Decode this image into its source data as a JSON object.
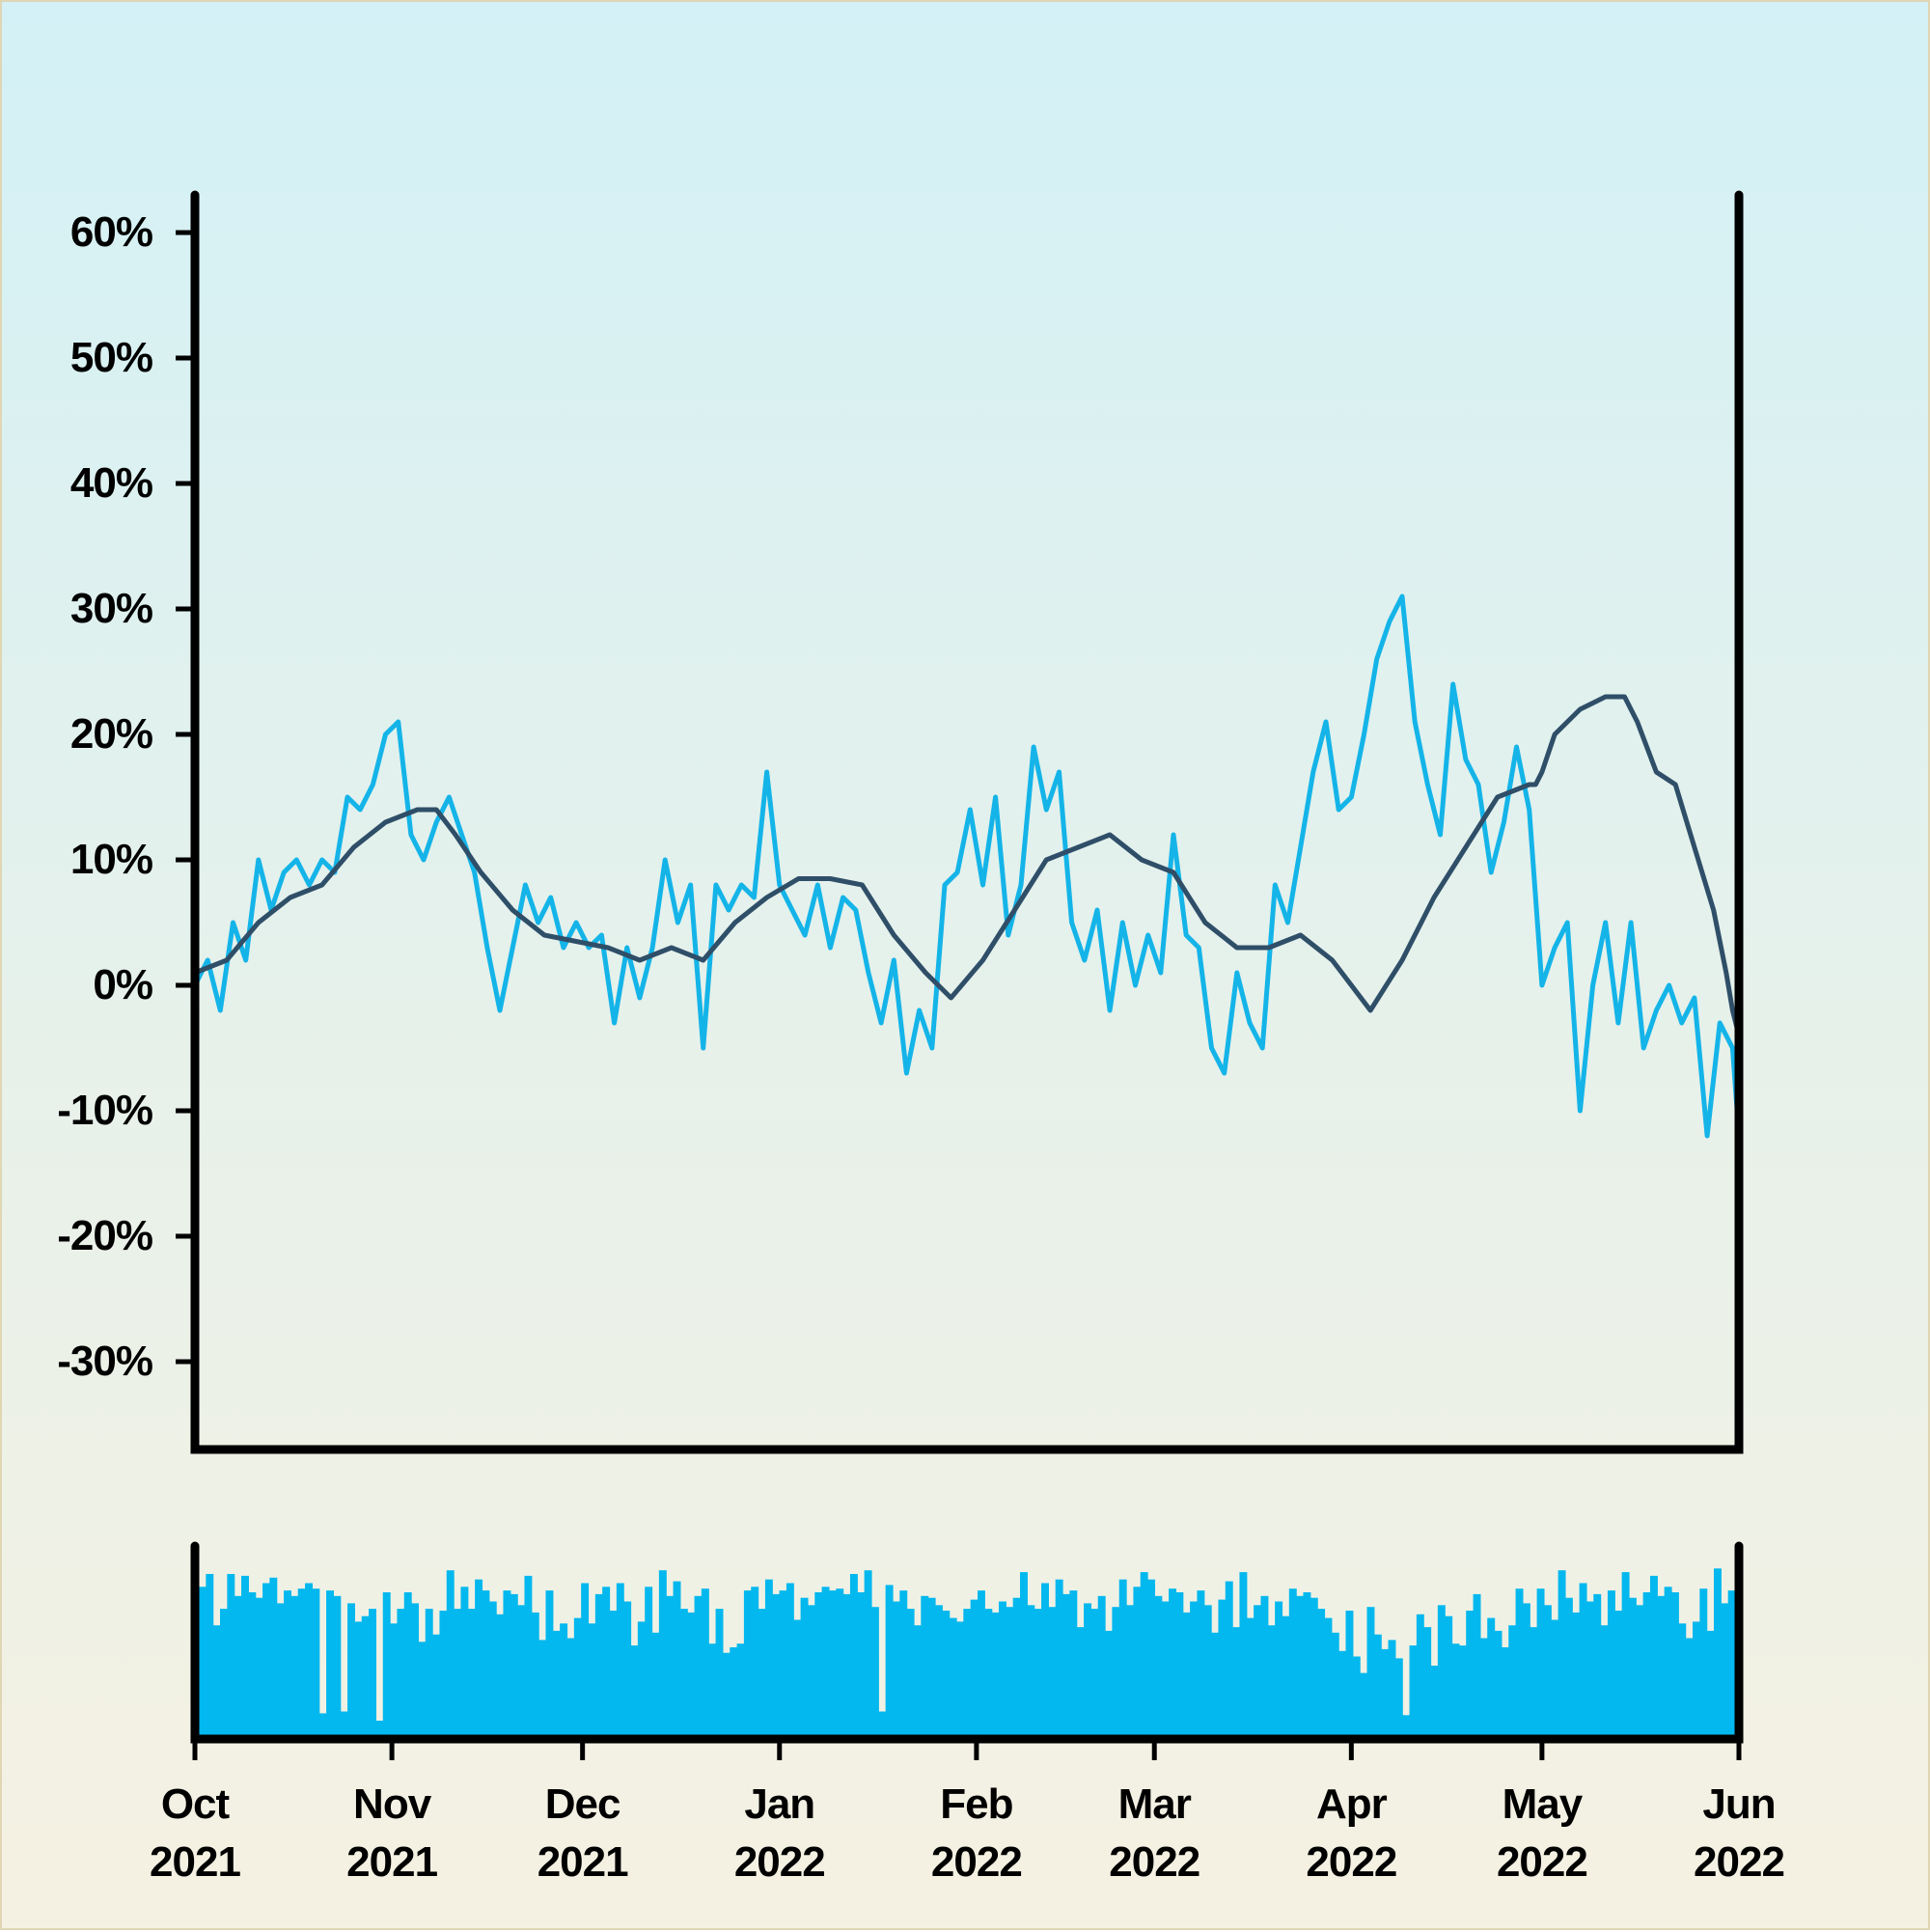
{
  "chart_data": {
    "type": "line",
    "title": "",
    "xlabel": "",
    "ylabel": "",
    "ylim": [
      -37,
      63
    ],
    "x_range": [
      "2021-10-01",
      "2022-06-01"
    ],
    "y_ticks": [
      {
        "value": 60,
        "label": "60%"
      },
      {
        "value": 50,
        "label": "50%"
      },
      {
        "value": 40,
        "label": "40%"
      },
      {
        "value": 30,
        "label": "30%"
      },
      {
        "value": 20,
        "label": "20%"
      },
      {
        "value": 10,
        "label": "10%"
      },
      {
        "value": 0,
        "label": "0%"
      },
      {
        "value": -10,
        "label": "-10%"
      },
      {
        "value": -20,
        "label": "-20%"
      },
      {
        "value": -30,
        "label": "-30%"
      }
    ],
    "x_ticks": [
      {
        "date": "2021-10-01",
        "month": "Oct",
        "year": "2021"
      },
      {
        "date": "2021-11-01",
        "month": "Nov",
        "year": "2021"
      },
      {
        "date": "2021-12-01",
        "month": "Dec",
        "year": "2021"
      },
      {
        "date": "2022-01-01",
        "month": "Jan",
        "year": "2022"
      },
      {
        "date": "2022-02-01",
        "month": "Feb",
        "year": "2022"
      },
      {
        "date": "2022-03-01",
        "month": "Mar",
        "year": "2022"
      },
      {
        "date": "2022-04-01",
        "month": "Apr",
        "year": "2022"
      },
      {
        "date": "2022-05-01",
        "month": "May",
        "year": "2022"
      },
      {
        "date": "2022-06-01",
        "month": "Jun",
        "year": "2022"
      }
    ],
    "series": [
      {
        "color": "#14b4e8",
        "points": [
          [
            "2021-10-01",
            0
          ],
          [
            "2021-10-03",
            2
          ],
          [
            "2021-10-05",
            -2
          ],
          [
            "2021-10-07",
            5
          ],
          [
            "2021-10-09",
            2
          ],
          [
            "2021-10-11",
            10
          ],
          [
            "2021-10-13",
            6
          ],
          [
            "2021-10-15",
            9
          ],
          [
            "2021-10-17",
            10
          ],
          [
            "2021-10-19",
            8
          ],
          [
            "2021-10-21",
            10
          ],
          [
            "2021-10-23",
            9
          ],
          [
            "2021-10-25",
            15
          ],
          [
            "2021-10-27",
            14
          ],
          [
            "2021-10-29",
            16
          ],
          [
            "2021-10-31",
            20
          ],
          [
            "2021-11-02",
            21
          ],
          [
            "2021-11-04",
            12
          ],
          [
            "2021-11-06",
            10
          ],
          [
            "2021-11-08",
            13
          ],
          [
            "2021-11-10",
            15
          ],
          [
            "2021-11-12",
            12
          ],
          [
            "2021-11-14",
            9
          ],
          [
            "2021-11-16",
            3
          ],
          [
            "2021-11-18",
            -2
          ],
          [
            "2021-11-20",
            3
          ],
          [
            "2021-11-22",
            8
          ],
          [
            "2021-11-24",
            5
          ],
          [
            "2021-11-26",
            7
          ],
          [
            "2021-11-28",
            3
          ],
          [
            "2021-11-30",
            5
          ],
          [
            "2021-12-02",
            3
          ],
          [
            "2021-12-04",
            4
          ],
          [
            "2021-12-06",
            -3
          ],
          [
            "2021-12-08",
            3
          ],
          [
            "2021-12-10",
            -1
          ],
          [
            "2021-12-12",
            3
          ],
          [
            "2021-12-14",
            10
          ],
          [
            "2021-12-16",
            5
          ],
          [
            "2021-12-18",
            8
          ],
          [
            "2021-12-20",
            -5
          ],
          [
            "2021-12-22",
            8
          ],
          [
            "2021-12-24",
            6
          ],
          [
            "2021-12-26",
            8
          ],
          [
            "2021-12-28",
            7
          ],
          [
            "2021-12-30",
            17
          ],
          [
            "2022-01-01",
            8
          ],
          [
            "2022-01-03",
            6
          ],
          [
            "2022-01-05",
            4
          ],
          [
            "2022-01-07",
            8
          ],
          [
            "2022-01-09",
            3
          ],
          [
            "2022-01-11",
            7
          ],
          [
            "2022-01-13",
            6
          ],
          [
            "2022-01-15",
            1
          ],
          [
            "2022-01-17",
            -3
          ],
          [
            "2022-01-19",
            2
          ],
          [
            "2022-01-21",
            -7
          ],
          [
            "2022-01-23",
            -2
          ],
          [
            "2022-01-25",
            -5
          ],
          [
            "2022-01-27",
            8
          ],
          [
            "2022-01-29",
            9
          ],
          [
            "2022-01-31",
            14
          ],
          [
            "2022-02-02",
            8
          ],
          [
            "2022-02-04",
            15
          ],
          [
            "2022-02-06",
            4
          ],
          [
            "2022-02-08",
            8
          ],
          [
            "2022-02-10",
            19
          ],
          [
            "2022-02-12",
            14
          ],
          [
            "2022-02-14",
            17
          ],
          [
            "2022-02-16",
            5
          ],
          [
            "2022-02-18",
            2
          ],
          [
            "2022-02-20",
            6
          ],
          [
            "2022-02-22",
            -2
          ],
          [
            "2022-02-24",
            5
          ],
          [
            "2022-02-26",
            0
          ],
          [
            "2022-02-28",
            4
          ],
          [
            "2022-03-02",
            1
          ],
          [
            "2022-03-04",
            12
          ],
          [
            "2022-03-06",
            4
          ],
          [
            "2022-03-08",
            3
          ],
          [
            "2022-03-10",
            -5
          ],
          [
            "2022-03-12",
            -7
          ],
          [
            "2022-03-14",
            1
          ],
          [
            "2022-03-16",
            -3
          ],
          [
            "2022-03-18",
            -5
          ],
          [
            "2022-03-20",
            8
          ],
          [
            "2022-03-22",
            5
          ],
          [
            "2022-03-24",
            11
          ],
          [
            "2022-03-26",
            17
          ],
          [
            "2022-03-28",
            21
          ],
          [
            "2022-03-30",
            14
          ],
          [
            "2022-04-01",
            15
          ],
          [
            "2022-04-03",
            20
          ],
          [
            "2022-04-05",
            26
          ],
          [
            "2022-04-07",
            29
          ],
          [
            "2022-04-09",
            31
          ],
          [
            "2022-04-11",
            21
          ],
          [
            "2022-04-13",
            16
          ],
          [
            "2022-04-15",
            12
          ],
          [
            "2022-04-17",
            24
          ],
          [
            "2022-04-19",
            18
          ],
          [
            "2022-04-21",
            16
          ],
          [
            "2022-04-23",
            9
          ],
          [
            "2022-04-25",
            13
          ],
          [
            "2022-04-27",
            19
          ],
          [
            "2022-04-29",
            14
          ],
          [
            "2022-05-01",
            0
          ],
          [
            "2022-05-03",
            3
          ],
          [
            "2022-05-05",
            5
          ],
          [
            "2022-05-07",
            -10
          ],
          [
            "2022-05-09",
            0
          ],
          [
            "2022-05-11",
            5
          ],
          [
            "2022-05-13",
            -3
          ],
          [
            "2022-05-15",
            5
          ],
          [
            "2022-05-17",
            -5
          ],
          [
            "2022-05-19",
            -2
          ],
          [
            "2022-05-21",
            0
          ],
          [
            "2022-05-23",
            -3
          ],
          [
            "2022-05-25",
            -1
          ],
          [
            "2022-05-27",
            -12
          ],
          [
            "2022-05-29",
            -3
          ],
          [
            "2022-05-31",
            -5
          ],
          [
            "2022-06-01",
            -12
          ]
        ]
      },
      {
        "color": "#2f4e68",
        "points": [
          [
            "2021-10-01",
            1
          ],
          [
            "2021-10-06",
            2
          ],
          [
            "2021-10-11",
            5
          ],
          [
            "2021-10-16",
            7
          ],
          [
            "2021-10-21",
            8
          ],
          [
            "2021-10-26",
            11
          ],
          [
            "2021-10-31",
            13
          ],
          [
            "2021-11-05",
            14
          ],
          [
            "2021-11-08",
            14
          ],
          [
            "2021-11-11",
            12
          ],
          [
            "2021-11-15",
            9
          ],
          [
            "2021-11-20",
            6
          ],
          [
            "2021-11-25",
            4
          ],
          [
            "2021-11-30",
            3.5
          ],
          [
            "2021-12-05",
            3
          ],
          [
            "2021-12-10",
            2
          ],
          [
            "2021-12-15",
            3
          ],
          [
            "2021-12-20",
            2
          ],
          [
            "2021-12-25",
            5
          ],
          [
            "2021-12-30",
            7
          ],
          [
            "2022-01-04",
            8.5
          ],
          [
            "2022-01-09",
            8.5
          ],
          [
            "2022-01-14",
            8
          ],
          [
            "2022-01-19",
            4
          ],
          [
            "2022-01-24",
            1
          ],
          [
            "2022-01-28",
            -1
          ],
          [
            "2022-02-02",
            2
          ],
          [
            "2022-02-07",
            6
          ],
          [
            "2022-02-12",
            10
          ],
          [
            "2022-02-17",
            11
          ],
          [
            "2022-02-22",
            12
          ],
          [
            "2022-02-27",
            10
          ],
          [
            "2022-03-04",
            9
          ],
          [
            "2022-03-09",
            5
          ],
          [
            "2022-03-14",
            3
          ],
          [
            "2022-03-19",
            3
          ],
          [
            "2022-03-24",
            4
          ],
          [
            "2022-03-29",
            2
          ],
          [
            "2022-04-01",
            0
          ],
          [
            "2022-04-04",
            -2
          ],
          [
            "2022-04-09",
            2
          ],
          [
            "2022-04-14",
            7
          ],
          [
            "2022-04-19",
            11
          ],
          [
            "2022-04-24",
            15
          ],
          [
            "2022-04-29",
            16
          ],
          [
            "2022-04-30",
            16
          ],
          [
            "2022-05-01",
            17
          ],
          [
            "2022-05-03",
            20
          ],
          [
            "2022-05-07",
            22
          ],
          [
            "2022-05-11",
            23
          ],
          [
            "2022-05-14",
            23
          ],
          [
            "2022-05-16",
            21
          ],
          [
            "2022-05-19",
            17
          ],
          [
            "2022-05-22",
            16
          ],
          [
            "2022-05-25",
            11
          ],
          [
            "2022-05-28",
            6
          ],
          [
            "2022-05-30",
            1
          ],
          [
            "2022-05-31",
            -2
          ],
          [
            "2022-06-01",
            -4
          ]
        ]
      }
    ],
    "volume_bars": [
      0.83,
      0.9,
      0.62,
      0.71,
      0.9,
      0.78,
      0.89,
      0.8,
      0.77,
      0.85,
      0.88,
      0.74,
      0.81,
      0.78,
      0.82,
      0.85,
      0.82,
      0.14,
      0.81,
      0.78,
      0.15,
      0.74,
      0.64,
      0.67,
      0.71,
      0.1,
      0.8,
      0.63,
      0.71,
      0.8,
      0.74,
      0.53,
      0.71,
      0.57,
      0.7,
      0.92,
      0.71,
      0.83,
      0.71,
      0.87,
      0.81,
      0.75,
      0.68,
      0.81,
      0.79,
      0.73,
      0.89,
      0.69,
      0.54,
      0.81,
      0.59,
      0.63,
      0.55,
      0.66,
      0.85,
      0.63,
      0.79,
      0.83,
      0.7,
      0.85,
      0.75,
      0.51,
      0.64,
      0.83,
      0.58,
      0.92,
      0.78,
      0.86,
      0.71,
      0.69,
      0.78,
      0.82,
      0.52,
      0.71,
      0.47,
      0.5,
      0.52,
      0.81,
      0.83,
      0.71,
      0.87,
      0.79,
      0.81,
      0.85,
      0.65,
      0.77,
      0.73,
      0.8,
      0.83,
      0.81,
      0.82,
      0.79,
      0.9,
      0.8,
      0.92,
      0.72,
      0.15,
      0.84,
      0.75,
      0.81,
      0.71,
      0.62,
      0.78,
      0.77,
      0.73,
      0.7,
      0.66,
      0.64,
      0.71,
      0.76,
      0.81,
      0.71,
      0.69,
      0.75,
      0.72,
      0.77,
      0.91,
      0.73,
      0.71,
      0.85,
      0.72,
      0.87,
      0.79,
      0.81,
      0.61,
      0.74,
      0.71,
      0.78,
      0.59,
      0.72,
      0.87,
      0.73,
      0.83,
      0.91,
      0.87,
      0.78,
      0.75,
      0.82,
      0.8,
      0.69,
      0.75,
      0.81,
      0.73,
      0.58,
      0.76,
      0.86,
      0.61,
      0.91,
      0.66,
      0.73,
      0.78,
      0.62,
      0.75,
      0.67,
      0.82,
      0.78,
      0.8,
      0.77,
      0.71,
      0.66,
      0.58,
      0.48,
      0.7,
      0.45,
      0.36,
      0.72,
      0.57,
      0.49,
      0.54,
      0.44,
      0.13,
      0.51,
      0.68,
      0.61,
      0.4,
      0.73,
      0.67,
      0.52,
      0.51,
      0.7,
      0.79,
      0.55,
      0.66,
      0.59,
      0.5,
      0.62,
      0.82,
      0.74,
      0.61,
      0.82,
      0.73,
      0.65,
      0.92,
      0.77,
      0.69,
      0.85,
      0.75,
      0.79,
      0.62,
      0.81,
      0.7,
      0.91,
      0.77,
      0.73,
      0.8,
      0.89,
      0.78,
      0.83,
      0.8,
      0.63,
      0.55,
      0.64,
      0.82,
      0.59,
      0.93,
      0.74,
      0.81
    ]
  }
}
